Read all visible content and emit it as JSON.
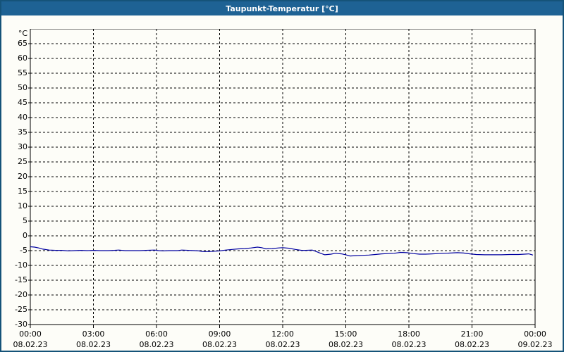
{
  "window": {
    "title": "Taupunkt-Temperatur [°C]"
  },
  "colors": {
    "titlebar_bg": "#1e6294",
    "titlebar_text": "#ffffff",
    "window_border": "#155379",
    "content_bg": "#fdfdf8",
    "grid": "#000000",
    "axis": "#000000",
    "label_text": "#000000",
    "series_line": "#0000a0"
  },
  "chart_data": {
    "type": "line",
    "title": "Taupunkt-Temperatur [°C]",
    "y_unit": "°C",
    "xlabel": "",
    "ylabel": "",
    "ylim": [
      -30,
      70
    ],
    "xlim_hours": [
      0,
      24
    ],
    "grid": "dashed",
    "legend": "none",
    "y_ticks": [
      65,
      60,
      55,
      50,
      45,
      40,
      35,
      30,
      25,
      20,
      15,
      10,
      5,
      0,
      -5,
      -10,
      -15,
      -20,
      -25,
      -30
    ],
    "x_ticks": [
      {
        "hour": 0,
        "time": "00:00",
        "date": "08.02.23"
      },
      {
        "hour": 3,
        "time": "03:00",
        "date": "08.02.23"
      },
      {
        "hour": 6,
        "time": "06:00",
        "date": "08.02.23"
      },
      {
        "hour": 9,
        "time": "09:00",
        "date": "08.02.23"
      },
      {
        "hour": 12,
        "time": "12:00",
        "date": "08.02.23"
      },
      {
        "hour": 15,
        "time": "15:00",
        "date": "08.02.23"
      },
      {
        "hour": 18,
        "time": "18:00",
        "date": "08.02.23"
      },
      {
        "hour": 21,
        "time": "21:00",
        "date": "08.02.23"
      },
      {
        "hour": 24,
        "time": "00:00",
        "date": "09.02.23"
      }
    ],
    "series": [
      {
        "name": "Taupunkt-Temperatur",
        "color": "#0000a0",
        "points": [
          [
            0.0,
            -3.7
          ],
          [
            0.2,
            -3.8
          ],
          [
            0.4,
            -4.1
          ],
          [
            0.6,
            -4.5
          ],
          [
            0.9,
            -4.8
          ],
          [
            1.2,
            -4.9
          ],
          [
            1.5,
            -4.9
          ],
          [
            1.8,
            -5.1
          ],
          [
            2.1,
            -5.0
          ],
          [
            2.4,
            -4.9
          ],
          [
            2.7,
            -5.0
          ],
          [
            3.0,
            -4.9
          ],
          [
            3.3,
            -5.0
          ],
          [
            3.7,
            -5.0
          ],
          [
            4.0,
            -4.9
          ],
          [
            4.2,
            -4.8
          ],
          [
            4.5,
            -5.0
          ],
          [
            4.9,
            -5.0
          ],
          [
            5.2,
            -5.0
          ],
          [
            5.5,
            -4.9
          ],
          [
            5.9,
            -4.8
          ],
          [
            6.1,
            -5.0
          ],
          [
            6.3,
            -5.1
          ],
          [
            6.6,
            -5.0
          ],
          [
            7.0,
            -5.0
          ],
          [
            7.2,
            -4.8
          ],
          [
            7.5,
            -4.9
          ],
          [
            7.8,
            -5.0
          ],
          [
            8.0,
            -5.1
          ],
          [
            8.2,
            -5.3
          ],
          [
            8.5,
            -5.3
          ],
          [
            8.8,
            -5.2
          ],
          [
            9.0,
            -5.1
          ],
          [
            9.3,
            -4.8
          ],
          [
            9.6,
            -4.6
          ],
          [
            9.9,
            -4.4
          ],
          [
            10.2,
            -4.3
          ],
          [
            10.5,
            -4.1
          ],
          [
            10.8,
            -3.8
          ],
          [
            11.0,
            -4.0
          ],
          [
            11.2,
            -4.4
          ],
          [
            11.5,
            -4.3
          ],
          [
            11.8,
            -4.1
          ],
          [
            12.0,
            -4.0
          ],
          [
            12.3,
            -4.2
          ],
          [
            12.6,
            -4.6
          ],
          [
            12.9,
            -4.9
          ],
          [
            13.1,
            -4.9
          ],
          [
            13.4,
            -4.8
          ],
          [
            13.6,
            -5.3
          ],
          [
            13.8,
            -5.9
          ],
          [
            14.0,
            -6.4
          ],
          [
            14.3,
            -6.2
          ],
          [
            14.5,
            -5.9
          ],
          [
            14.8,
            -6.1
          ],
          [
            15.0,
            -6.4
          ],
          [
            15.2,
            -6.8
          ],
          [
            15.5,
            -6.7
          ],
          [
            15.8,
            -6.6
          ],
          [
            16.1,
            -6.5
          ],
          [
            16.4,
            -6.3
          ],
          [
            16.7,
            -6.1
          ],
          [
            17.0,
            -6.0
          ],
          [
            17.3,
            -5.9
          ],
          [
            17.6,
            -5.6
          ],
          [
            17.9,
            -5.7
          ],
          [
            18.2,
            -6.0
          ],
          [
            18.5,
            -6.2
          ],
          [
            18.8,
            -6.2
          ],
          [
            19.1,
            -6.1
          ],
          [
            19.4,
            -6.0
          ],
          [
            19.7,
            -5.9
          ],
          [
            20.0,
            -5.8
          ],
          [
            20.3,
            -5.7
          ],
          [
            20.6,
            -5.8
          ],
          [
            20.9,
            -6.1
          ],
          [
            21.2,
            -6.3
          ],
          [
            21.6,
            -6.4
          ],
          [
            22.0,
            -6.4
          ],
          [
            22.4,
            -6.4
          ],
          [
            22.8,
            -6.3
          ],
          [
            23.2,
            -6.3
          ],
          [
            23.5,
            -6.2
          ],
          [
            23.7,
            -6.1
          ],
          [
            23.9,
            -6.5
          ]
        ]
      }
    ]
  }
}
